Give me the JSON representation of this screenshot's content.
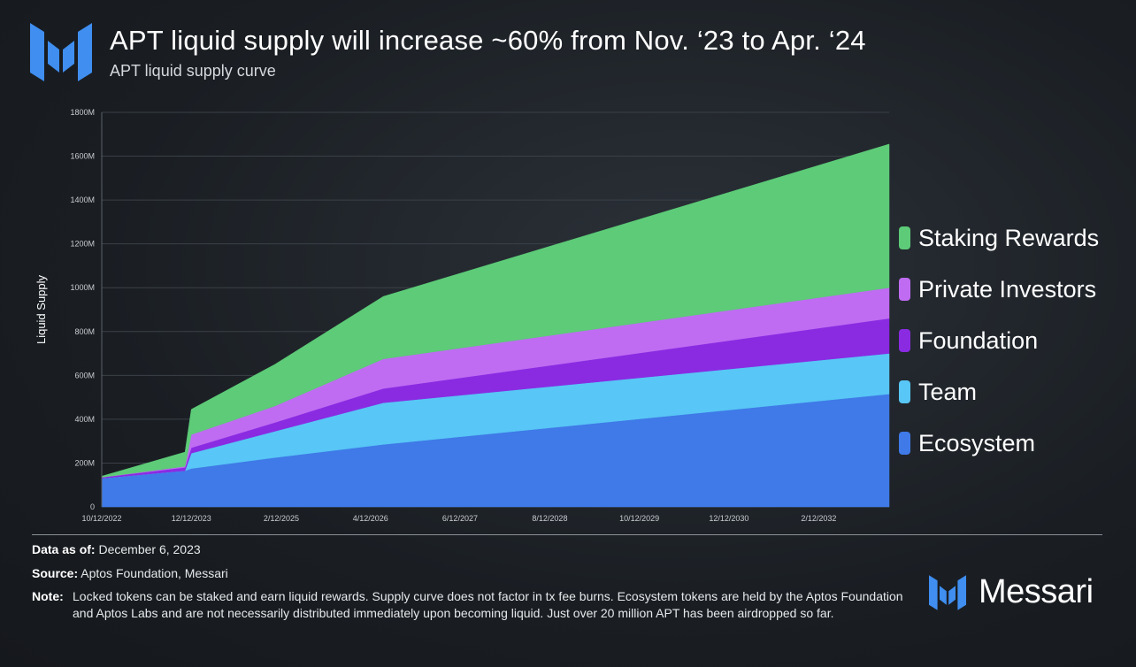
{
  "header": {
    "title": "APT liquid supply will increase ~60% from Nov. ‘23 to Apr. ‘24",
    "subtitle": "APT liquid supply curve"
  },
  "colors": {
    "ecosystem": "#3f7ae8",
    "team": "#58c6f6",
    "foundation": "#8a2be2",
    "private_investors": "#bf6cf2",
    "staking_rewards": "#5dcb78",
    "logo_blue": "#3f8ef0"
  },
  "chart_data": {
    "type": "area",
    "stacked": true,
    "ylabel": "Liquid Supply",
    "xlabel": "",
    "ylim": [
      0,
      1800
    ],
    "y_ticks": [
      "0",
      "200M",
      "400M",
      "600M",
      "800M",
      "1000M",
      "1200M",
      "1400M",
      "1600M",
      "1800M"
    ],
    "x_tick_labels": [
      "10/12/2022",
      "12/12/2023",
      "2/12/2025",
      "4/12/2026",
      "6/12/2027",
      "8/12/2028",
      "10/12/2029",
      "12/12/2030",
      "2/12/2032"
    ],
    "x": [
      "10/12/2022",
      "11/12/2023",
      "12/12/2023",
      "1/12/2025",
      "6/12/2026",
      "1/12/2033"
    ],
    "grid": true,
    "legend_position": "right",
    "series": [
      {
        "name": "Ecosystem",
        "values": [
          130,
          165,
          175,
          225,
          285,
          515
        ]
      },
      {
        "name": "Team",
        "values": [
          0,
          0,
          70,
          120,
          190,
          185
        ]
      },
      {
        "name": "Foundation",
        "values": [
          5,
          15,
          25,
          40,
          65,
          160
        ]
      },
      {
        "name": "Private Investors",
        "values": [
          0,
          5,
          60,
          75,
          135,
          140
        ]
      },
      {
        "name": "Staking Rewards",
        "values": [
          5,
          65,
          115,
          190,
          285,
          655
        ]
      }
    ]
  },
  "legend": {
    "items": [
      {
        "label": "Staking Rewards",
        "color_key": "staking_rewards"
      },
      {
        "label": "Private Investors",
        "color_key": "private_investors"
      },
      {
        "label": "Foundation",
        "color_key": "foundation"
      },
      {
        "label": "Team",
        "color_key": "team"
      },
      {
        "label": "Ecosystem",
        "color_key": "ecosystem"
      }
    ]
  },
  "footer": {
    "data_as_of_label": "Data as of:",
    "data_as_of_value": "December 6, 2023",
    "source_label": "Source:",
    "source_value": "Aptos Foundation, Messari",
    "note_label": "Note:",
    "note_value": "Locked tokens can be staked and earn liquid rewards. Supply curve does not factor in tx fee burns. Ecosystem tokens are held by the Aptos Foundation and Aptos Labs and are not necessarily distributed immediately upon becoming liquid. Just over 20 million APT has been airdropped so far."
  },
  "brand": {
    "name": "Messari",
    "logo_icon": "messari-logo-icon"
  }
}
